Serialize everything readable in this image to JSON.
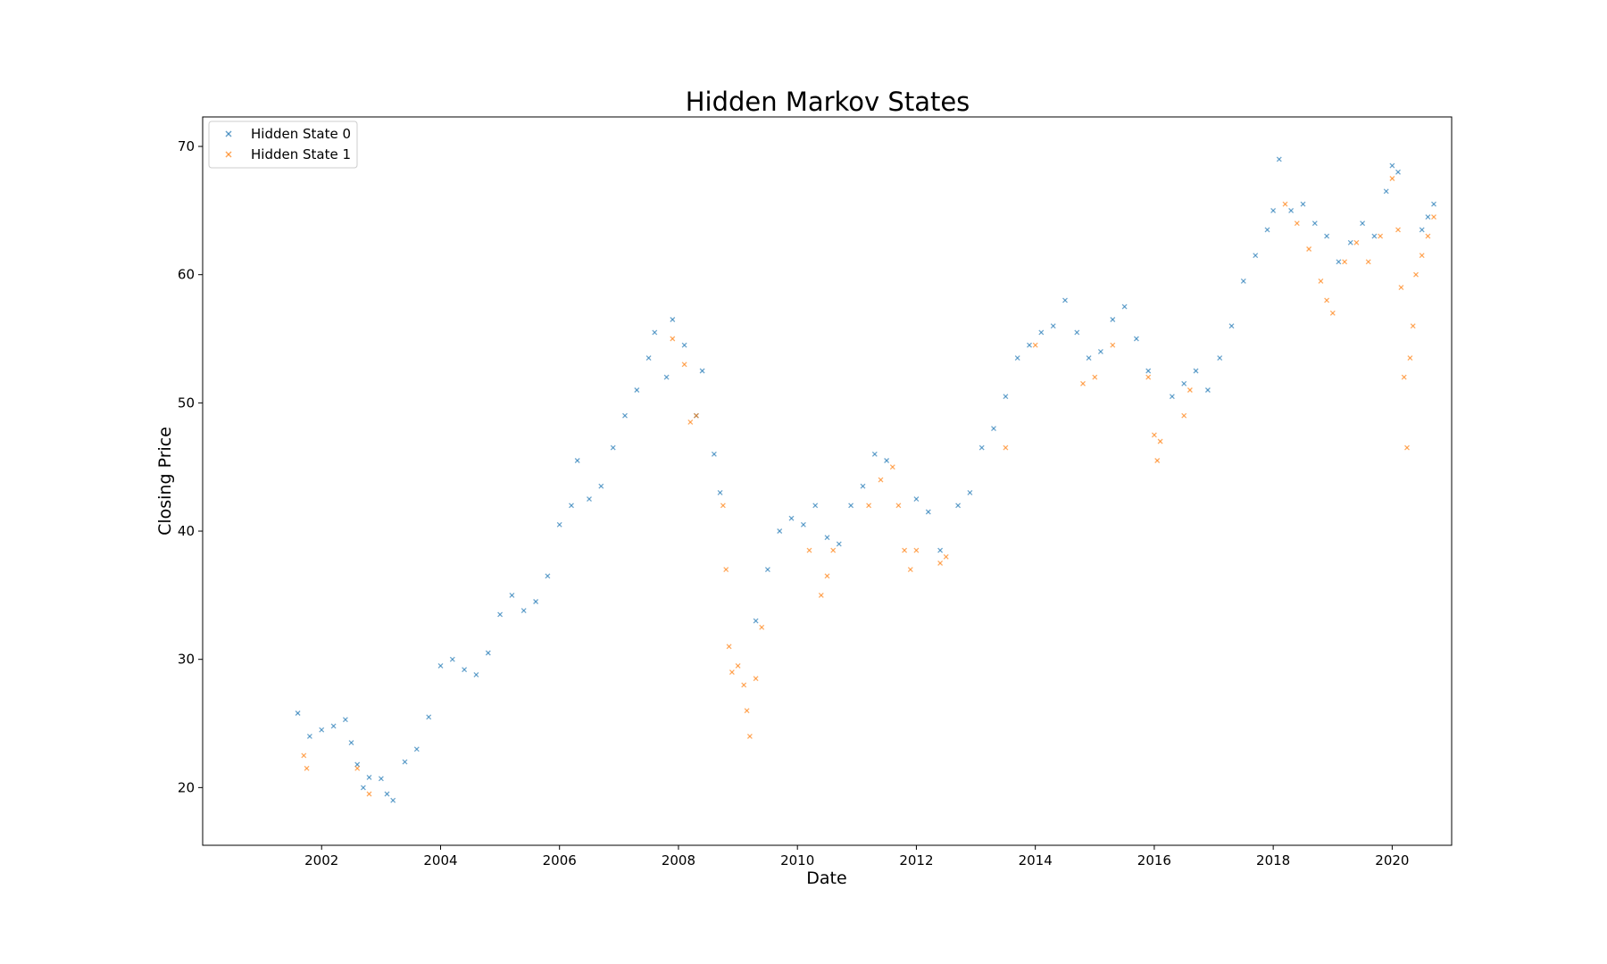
{
  "chart_data": {
    "type": "scatter",
    "title": "Hidden Markov States",
    "xlabel": "Date",
    "ylabel": "Closing Price",
    "xlim": [
      2000.0,
      2021.0
    ],
    "ylim": [
      15.5,
      72.3
    ],
    "xticks": [
      2002,
      2004,
      2006,
      2008,
      2010,
      2012,
      2014,
      2016,
      2018,
      2020
    ],
    "yticks": [
      20,
      30,
      40,
      50,
      60,
      70
    ],
    "grid": false,
    "legend_position": "upper-left",
    "marker": "x",
    "series": [
      {
        "name": "Hidden State 0",
        "color": "#1f77b4",
        "x": [
          2001.6,
          2001.8,
          2002.0,
          2002.2,
          2002.4,
          2002.5,
          2002.6,
          2002.7,
          2002.8,
          2003.0,
          2003.1,
          2003.2,
          2003.4,
          2003.6,
          2003.8,
          2004.0,
          2004.2,
          2004.4,
          2004.6,
          2004.8,
          2005.0,
          2005.2,
          2005.4,
          2005.6,
          2005.8,
          2006.0,
          2006.2,
          2006.3,
          2006.5,
          2006.7,
          2006.9,
          2007.1,
          2007.3,
          2007.5,
          2007.6,
          2007.8,
          2007.9,
          2008.1,
          2008.3,
          2008.4,
          2008.6,
          2008.7,
          2009.3,
          2009.5,
          2009.7,
          2009.9,
          2010.1,
          2010.3,
          2010.5,
          2010.7,
          2010.9,
          2011.1,
          2011.3,
          2011.5,
          2012.0,
          2012.2,
          2012.4,
          2012.7,
          2012.9,
          2013.1,
          2013.3,
          2013.5,
          2013.7,
          2013.9,
          2014.1,
          2014.3,
          2014.5,
          2014.7,
          2014.9,
          2015.1,
          2015.3,
          2015.5,
          2015.7,
          2015.9,
          2016.3,
          2016.5,
          2016.7,
          2016.9,
          2017.1,
          2017.3,
          2017.5,
          2017.7,
          2017.9,
          2018.0,
          2018.1,
          2018.3,
          2018.5,
          2018.7,
          2018.9,
          2019.1,
          2019.3,
          2019.5,
          2019.7,
          2019.9,
          2020.0,
          2020.1,
          2020.5,
          2020.6,
          2020.7
        ],
        "y": [
          25.8,
          24.0,
          24.5,
          24.8,
          25.3,
          23.5,
          21.8,
          20.0,
          20.8,
          20.7,
          19.5,
          19.0,
          22.0,
          23.0,
          25.5,
          29.5,
          30.0,
          29.2,
          28.8,
          30.5,
          33.5,
          35.0,
          33.8,
          34.5,
          36.5,
          40.5,
          42.0,
          45.5,
          42.5,
          43.5,
          46.5,
          49.0,
          51.0,
          53.5,
          55.5,
          52.0,
          56.5,
          54.5,
          49.0,
          52.5,
          46.0,
          43.0,
          33.0,
          37.0,
          40.0,
          41.0,
          40.5,
          42.0,
          39.5,
          39.0,
          42.0,
          43.5,
          46.0,
          45.5,
          42.5,
          41.5,
          38.5,
          42.0,
          43.0,
          46.5,
          48.0,
          50.5,
          53.5,
          54.5,
          55.5,
          56.0,
          58.0,
          55.5,
          53.5,
          54.0,
          56.5,
          57.5,
          55.0,
          52.5,
          50.5,
          51.5,
          52.5,
          51.0,
          53.5,
          56.0,
          59.5,
          61.5,
          63.5,
          65.0,
          69.0,
          65.0,
          65.5,
          64.0,
          63.0,
          61.0,
          62.5,
          64.0,
          63.0,
          66.5,
          68.5,
          68.0,
          63.5,
          64.5,
          65.5
        ]
      },
      {
        "name": "Hidden State 1",
        "color": "#ff7f0e",
        "x": [
          2001.7,
          2001.75,
          2002.6,
          2002.8,
          2007.9,
          2008.1,
          2008.2,
          2008.3,
          2008.75,
          2008.8,
          2008.85,
          2008.9,
          2009.0,
          2009.1,
          2009.15,
          2009.2,
          2009.3,
          2009.4,
          2010.2,
          2010.4,
          2010.5,
          2010.6,
          2011.2,
          2011.4,
          2011.6,
          2011.7,
          2011.8,
          2011.9,
          2012.0,
          2012.4,
          2012.5,
          2013.5,
          2014.0,
          2014.8,
          2015.0,
          2015.3,
          2015.9,
          2016.0,
          2016.05,
          2016.1,
          2016.5,
          2016.6,
          2018.2,
          2018.4,
          2018.6,
          2018.8,
          2018.9,
          2019.0,
          2019.2,
          2019.4,
          2019.6,
          2019.8,
          2020.0,
          2020.1,
          2020.15,
          2020.2,
          2020.25,
          2020.3,
          2020.35,
          2020.4,
          2020.5,
          2020.6,
          2020.7
        ],
        "y": [
          22.5,
          21.5,
          21.5,
          19.5,
          55.0,
          53.0,
          48.5,
          49.0,
          42.0,
          37.0,
          31.0,
          29.0,
          29.5,
          28.0,
          26.0,
          24.0,
          28.5,
          32.5,
          38.5,
          35.0,
          36.5,
          38.5,
          42.0,
          44.0,
          45.0,
          42.0,
          38.5,
          37.0,
          38.5,
          37.5,
          38.0,
          46.5,
          54.5,
          51.5,
          52.0,
          54.5,
          52.0,
          47.5,
          45.5,
          47.0,
          49.0,
          51.0,
          65.5,
          64.0,
          62.0,
          59.5,
          58.0,
          57.0,
          61.0,
          62.5,
          61.0,
          63.0,
          67.5,
          63.5,
          59.0,
          52.0,
          46.5,
          53.5,
          56.0,
          60.0,
          61.5,
          63.0,
          64.5
        ]
      }
    ]
  }
}
